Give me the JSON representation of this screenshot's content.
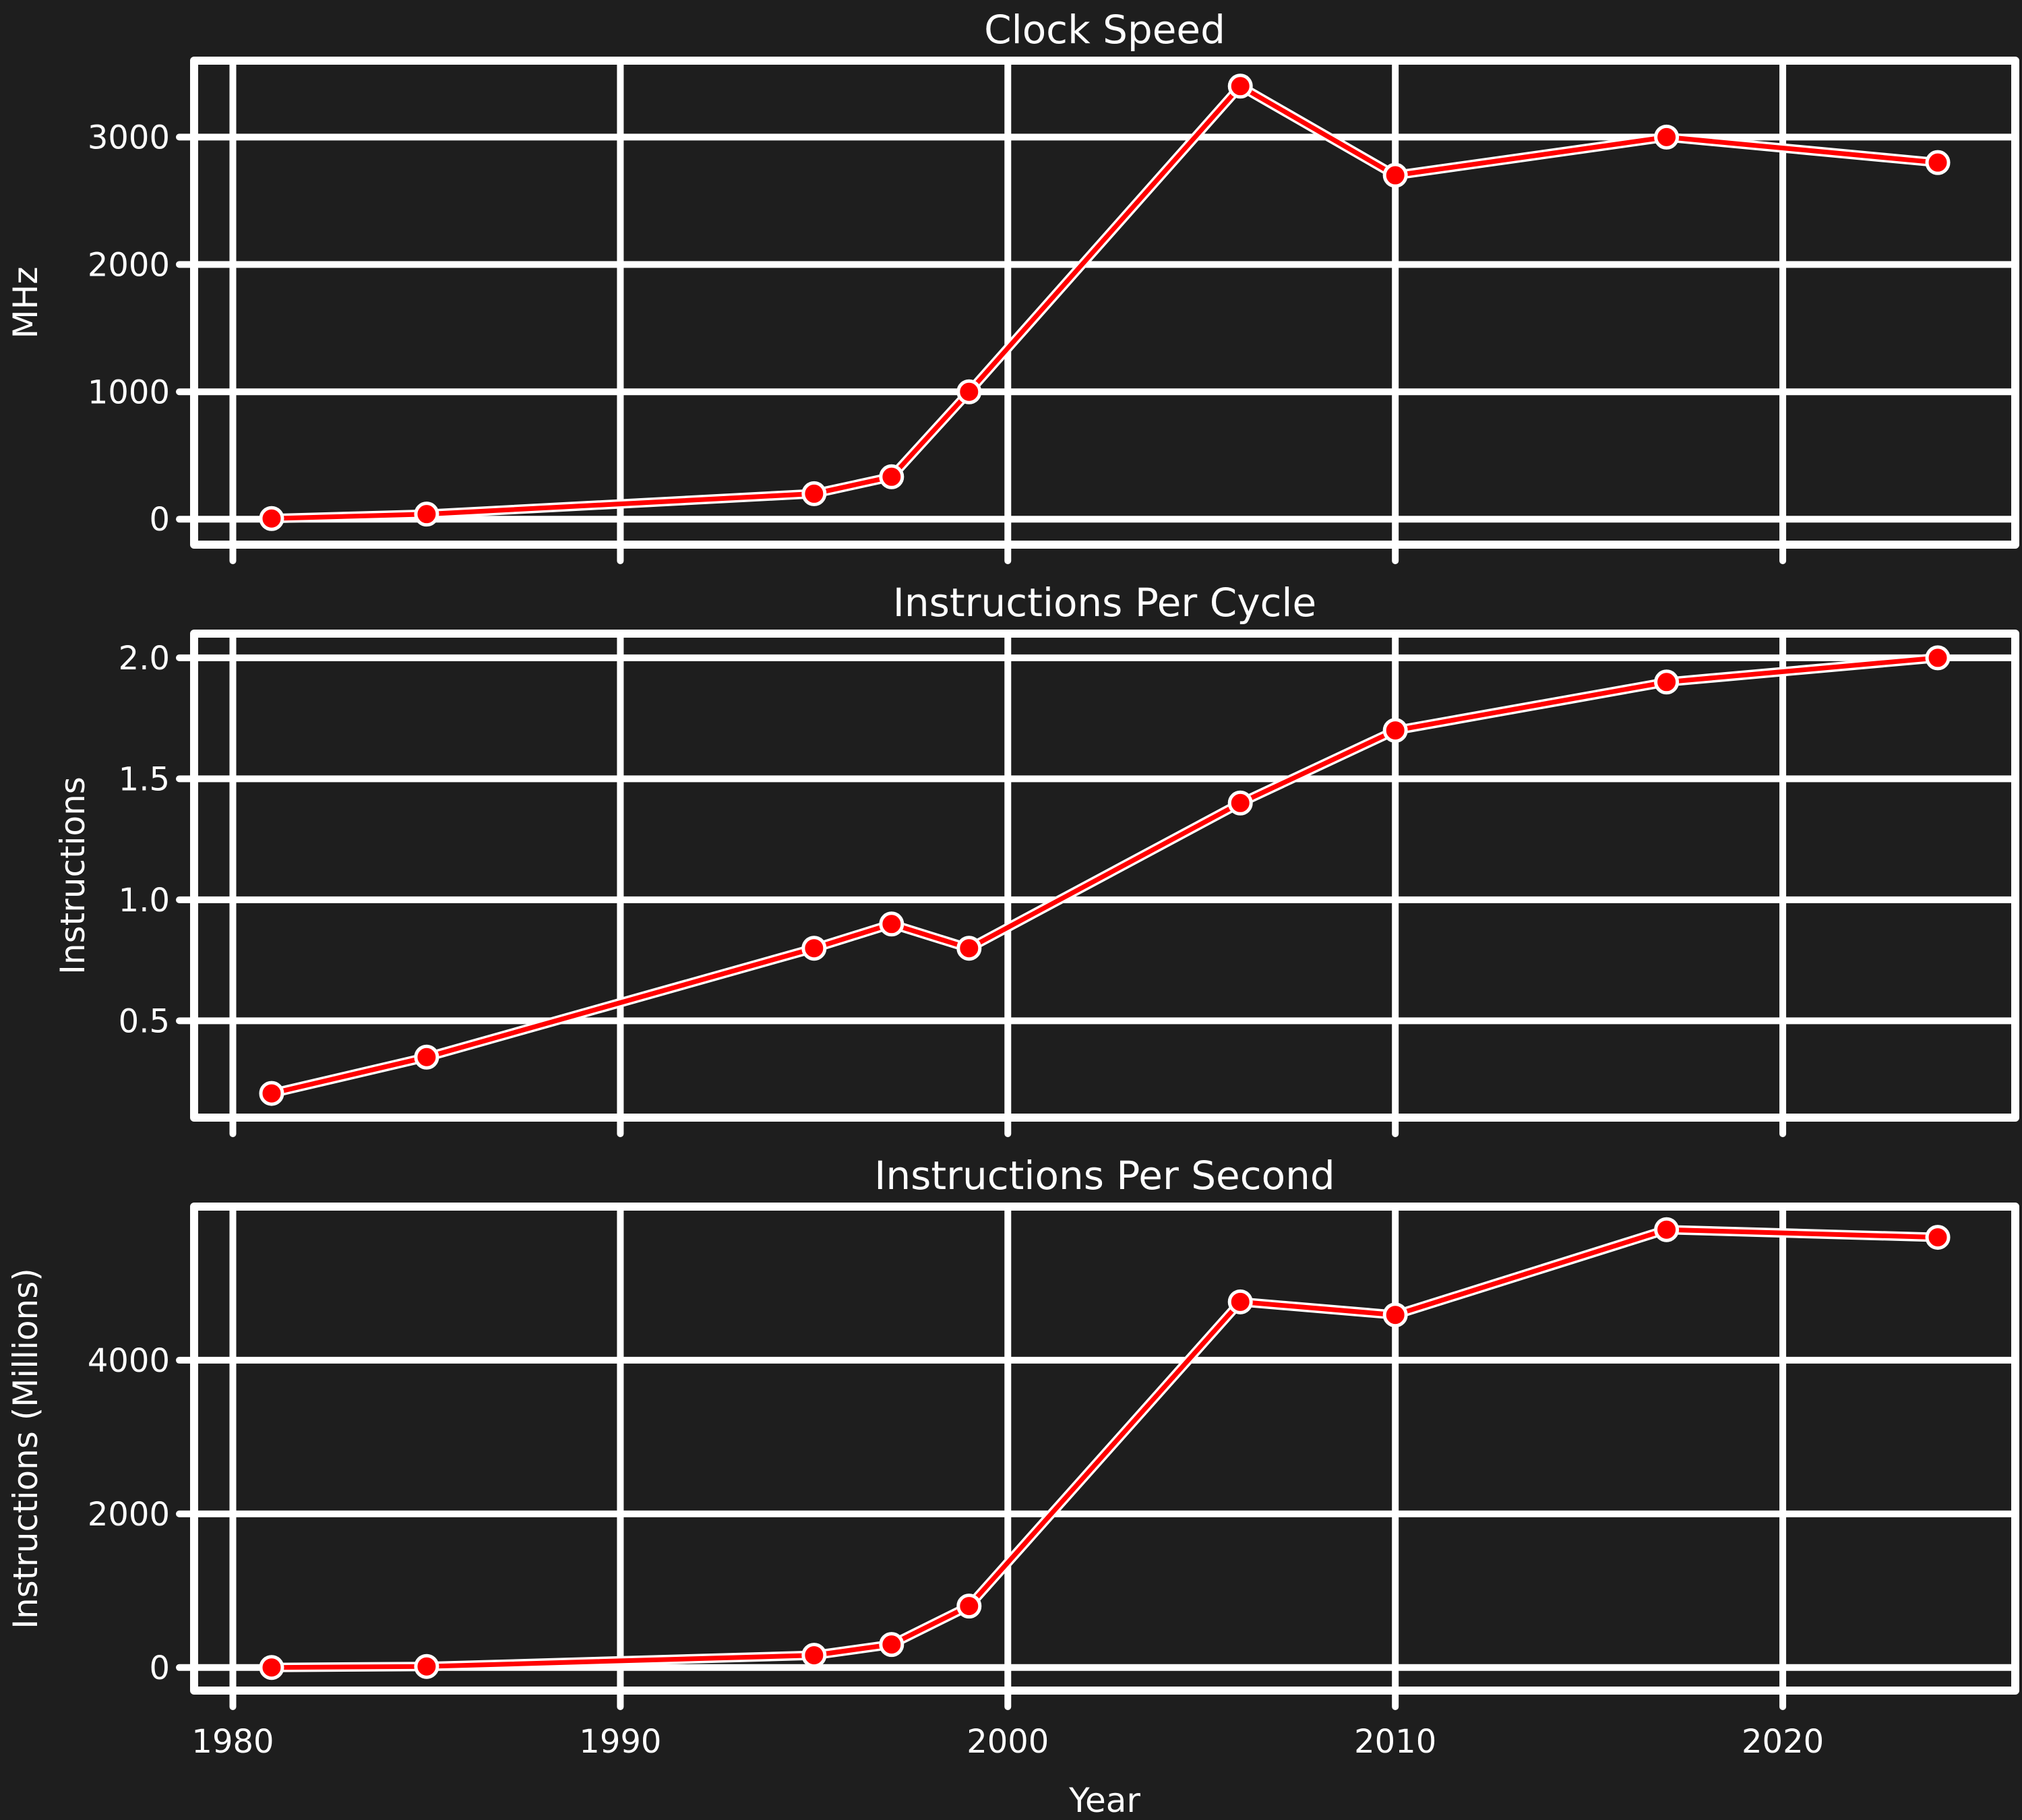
{
  "colors": {
    "background": "#1e1e1e",
    "frame": "#ffffff",
    "grid": "#ffffff",
    "line": "#ff0000",
    "marker_fill": "#ff0000",
    "marker_edge": "#ffffff"
  },
  "chart_data": [
    {
      "type": "line",
      "title": "Clock Speed",
      "xlabel": "",
      "ylabel": "MHz",
      "xlim": [
        1979,
        2026
      ],
      "ylim": [
        -200,
        3600
      ],
      "xticks": [
        1980,
        1990,
        2000,
        2010,
        2020
      ],
      "yticks": [
        0,
        1000,
        2000,
        3000
      ],
      "ytick_labels": [
        "0",
        "1000",
        "2000",
        "3000"
      ],
      "grid": true,
      "x": [
        1981,
        1985,
        1995,
        1997,
        1999,
        2006,
        2010,
        2017,
        2024
      ],
      "series": [
        {
          "values": [
            5,
            40,
            200,
            333,
            1000,
            3400,
            2700,
            3000,
            2800
          ]
        }
      ]
    },
    {
      "type": "line",
      "title": "Instructions Per Cycle",
      "xlabel": "",
      "ylabel": "Instructions",
      "xlim": [
        1979,
        2026
      ],
      "ylim": [
        0.1,
        2.1
      ],
      "xticks": [
        1980,
        1990,
        2000,
        2010,
        2020
      ],
      "yticks": [
        0.5,
        1.0,
        1.5,
        2.0
      ],
      "ytick_labels": [
        "0.5",
        "1.0",
        "1.5",
        "2.0"
      ],
      "grid": true,
      "x": [
        1981,
        1985,
        1995,
        1997,
        1999,
        2006,
        2010,
        2017,
        2024
      ],
      "series": [
        {
          "values": [
            0.2,
            0.35,
            0.8,
            0.9,
            0.8,
            1.4,
            1.7,
            1.9,
            2.0
          ]
        }
      ]
    },
    {
      "type": "line",
      "title": "Instructions Per Second",
      "xlabel": "Year",
      "ylabel": "Instructions (Millions)",
      "xlim": [
        1979,
        2026
      ],
      "ylim": [
        -300,
        6000
      ],
      "xticks": [
        1980,
        1990,
        2000,
        2010,
        2020
      ],
      "xtick_labels": [
        "1980",
        "1990",
        "2000",
        "2010",
        "2020"
      ],
      "yticks": [
        0,
        2000,
        4000
      ],
      "ytick_labels": [
        "0",
        "2000",
        "4000"
      ],
      "grid": true,
      "x": [
        1981,
        1985,
        1995,
        1997,
        1999,
        2006,
        2010,
        2017,
        2024
      ],
      "series": [
        {
          "values": [
            1,
            14,
            160,
            300,
            800,
            4760,
            4590,
            5700,
            5600
          ]
        }
      ]
    }
  ]
}
